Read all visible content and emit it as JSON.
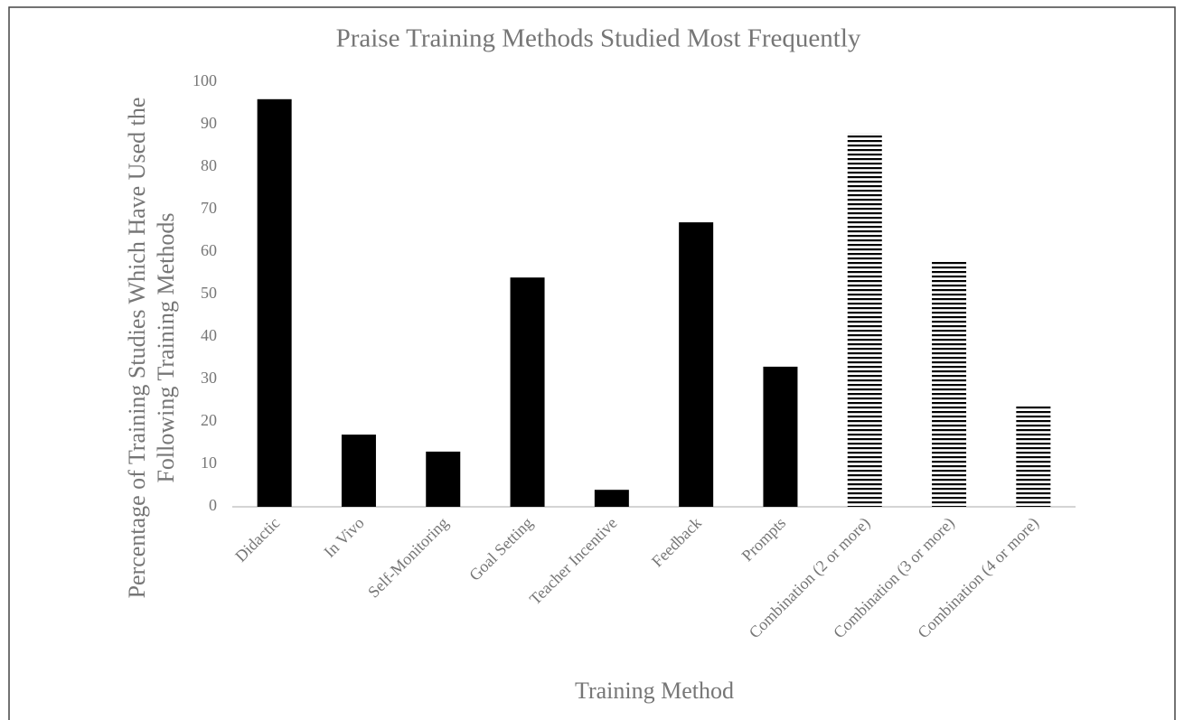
{
  "chart_data": {
    "type": "bar",
    "title": "Praise Training Methods Studied Most Frequently",
    "ylabel": [
      "Percentage of Training Studies Which Have Used the",
      "Following Training  Methods"
    ],
    "xlabel": "Training Method",
    "categories": [
      "Didactic",
      "In Vivo",
      "Self-Monitoring",
      "Goal Setting",
      "Teacher Incentive",
      "Feedback",
      "Prompts",
      "Combination (2 or more)",
      "Combination (3 or more)",
      "Combination (4 or more)"
    ],
    "values": [
      96,
      17,
      13,
      54,
      4,
      67,
      33,
      88,
      58,
      24
    ],
    "fills": [
      "solid",
      "solid",
      "solid",
      "solid",
      "solid",
      "solid",
      "solid",
      "horizontal-lines",
      "horizontal-lines",
      "horizontal-lines"
    ],
    "color": "#000000",
    "ylim": [
      0,
      100
    ],
    "yticks": [
      0,
      10,
      20,
      30,
      40,
      50,
      60,
      70,
      80,
      90,
      100
    ],
    "grid": false
  }
}
